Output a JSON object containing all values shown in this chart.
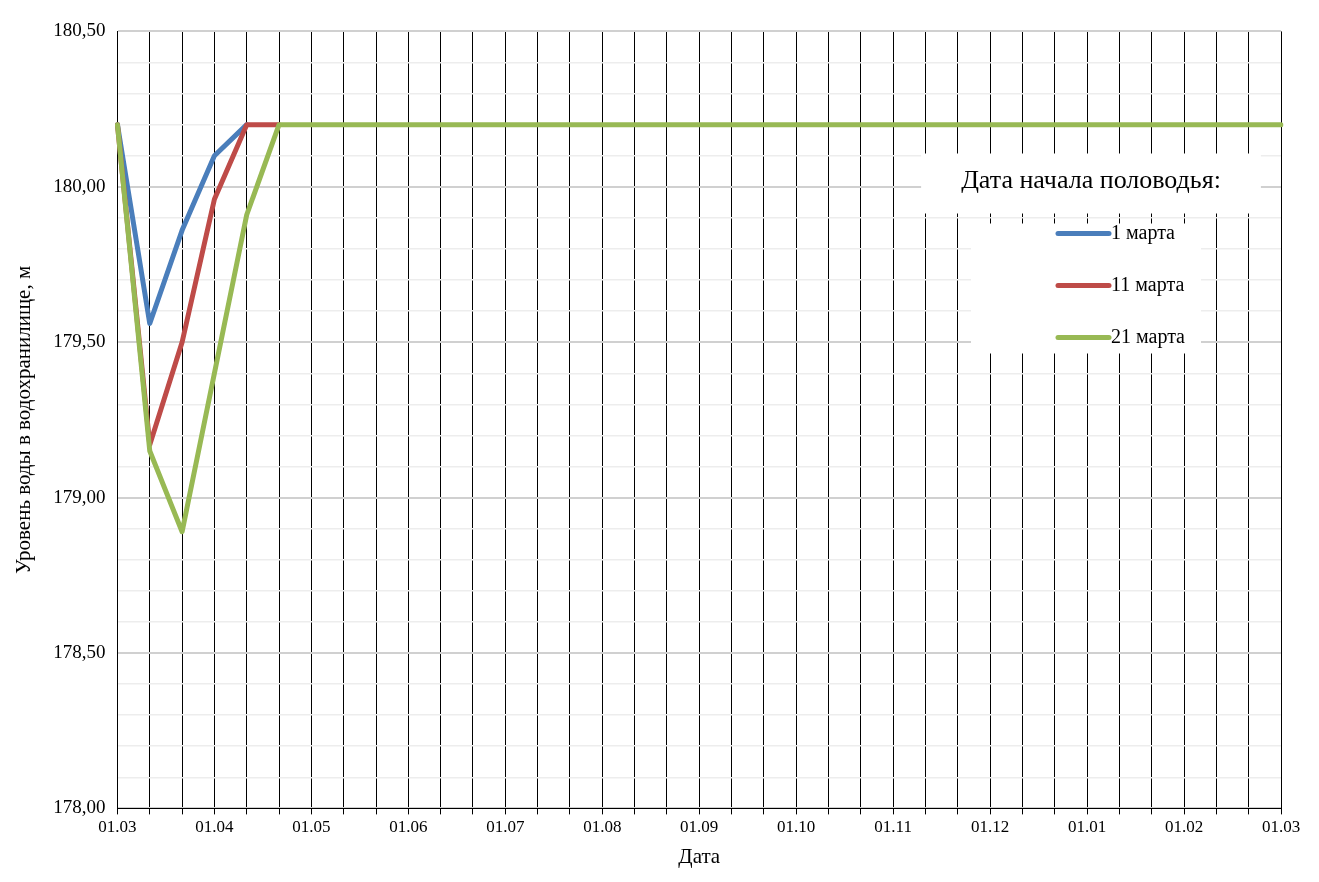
{
  "chart_data": {
    "type": "line",
    "xlabel": "Дата",
    "ylabel": "Уровень воды в водохранилище, м",
    "legend_title": "Дата начала половодья:",
    "categories": [
      "01.03",
      null,
      null,
      "01.04",
      null,
      null,
      "01.05",
      null,
      null,
      "01.06",
      null,
      null,
      "01.07",
      null,
      null,
      "01.08",
      null,
      null,
      "01.09",
      null,
      null,
      "01.10",
      null,
      null,
      "01.11",
      null,
      null,
      "01.12",
      null,
      null,
      "01.01",
      null,
      null,
      "01.02",
      null,
      null,
      "01.03"
    ],
    "series": [
      {
        "name": "1 марта",
        "color": "#4a7ebb",
        "values": [
          180.2,
          179.56,
          179.86,
          180.1,
          180.2,
          null,
          null,
          null,
          null,
          null,
          null,
          null,
          null,
          null,
          null,
          null,
          null,
          null,
          null,
          null,
          null,
          null,
          null,
          null,
          null,
          null,
          null,
          null,
          null,
          null,
          null,
          null,
          null,
          null,
          null,
          null,
          null
        ]
      },
      {
        "name": "11 марта",
        "color": "#be4b48",
        "values": [
          180.2,
          179.17,
          179.5,
          179.96,
          180.2,
          180.2,
          null,
          null,
          null,
          null,
          null,
          null,
          null,
          null,
          null,
          null,
          null,
          null,
          null,
          null,
          null,
          null,
          null,
          null,
          null,
          null,
          null,
          null,
          null,
          null,
          null,
          null,
          null,
          null,
          null,
          null,
          null
        ]
      },
      {
        "name": "21 марта",
        "color": "#98b954",
        "values": [
          180.2,
          179.15,
          178.89,
          179.4,
          179.91,
          180.2,
          180.2,
          180.2,
          180.2,
          180.2,
          180.2,
          180.2,
          180.2,
          180.2,
          180.2,
          180.2,
          180.2,
          180.2,
          180.2,
          180.2,
          180.2,
          180.2,
          180.2,
          180.2,
          180.2,
          180.2,
          180.2,
          180.2,
          180.2,
          180.2,
          180.2,
          180.2,
          180.2,
          180.2,
          180.2,
          180.2,
          180.2
        ]
      }
    ],
    "ylim": [
      178,
      180.5
    ],
    "yticks": [
      {
        "value": 178,
        "label": "178,00"
      },
      {
        "value": 178.1,
        "label": null
      },
      {
        "value": 178.2,
        "label": null
      },
      {
        "value": 178.3,
        "label": null
      },
      {
        "value": 178.4,
        "label": null
      },
      {
        "value": 178.5,
        "label": "178,50"
      },
      {
        "value": 178.6,
        "label": null
      },
      {
        "value": 178.7,
        "label": null
      },
      {
        "value": 178.8,
        "label": null
      },
      {
        "value": 178.9,
        "label": null
      },
      {
        "value": 179,
        "label": "179,00"
      },
      {
        "value": 179.1,
        "label": null
      },
      {
        "value": 179.2,
        "label": null
      },
      {
        "value": 179.3,
        "label": null
      },
      {
        "value": 179.4,
        "label": null
      },
      {
        "value": 179.5,
        "label": "179,50"
      },
      {
        "value": 179.6,
        "label": null
      },
      {
        "value": 179.7,
        "label": null
      },
      {
        "value": 179.8,
        "label": null
      },
      {
        "value": 179.9,
        "label": null
      },
      {
        "value": 180,
        "label": "180,00"
      },
      {
        "value": 180.1,
        "label": null
      },
      {
        "value": 180.2,
        "label": null
      },
      {
        "value": 180.3,
        "label": null
      },
      {
        "value": 180.4,
        "label": null
      },
      {
        "value": 180.5,
        "label": "180,50"
      }
    ],
    "grid": true,
    "legend": "top right",
    "line_style": "solid"
  }
}
